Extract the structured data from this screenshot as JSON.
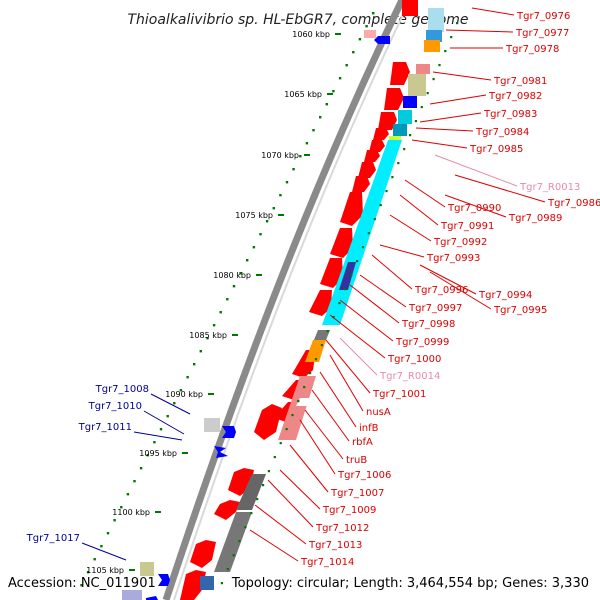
{
  "title": "Thioalkalivibrio sp. HL-EbGR7, complete genome",
  "footer": {
    "accession": "Accession: NC_011901",
    "topology": "Topology: circular; Length: 3,464,554 bp; Genes: 3,330"
  },
  "colors": {
    "forward_label": "#dd0000",
    "reverse_label": "#000099",
    "rna_label": "#e88aa8",
    "forward_gene": "#ff0000",
    "reverse_gene": "#0000ff",
    "cog_cyan": "#00e8f0",
    "cog_grey": "#777777",
    "cog_orange": "#ff9900",
    "cog_olive": "#c8c890",
    "cog_salmon": "#ee8888",
    "tick_green": "#007700"
  },
  "ruler": [
    {
      "label": "1060 kbp"
    },
    {
      "label": "1065 kbp"
    },
    {
      "label": "1070 kbp"
    },
    {
      "label": "1075 kbp"
    },
    {
      "label": "1080 kbp"
    },
    {
      "label": "1085 kbp"
    },
    {
      "label": "1090 kbp"
    },
    {
      "label": "1095 kbp"
    },
    {
      "label": "1100 kbp"
    },
    {
      "label": "1105 kbp"
    }
  ],
  "right_labels": [
    {
      "name": "Tgr7_0976",
      "kind": "gene"
    },
    {
      "name": "Tgr7_0977",
      "kind": "gene"
    },
    {
      "name": "Tgr7_0978",
      "kind": "gene"
    },
    {
      "name": "Tgr7_0981",
      "kind": "gene"
    },
    {
      "name": "Tgr7_0982",
      "kind": "gene"
    },
    {
      "name": "Tgr7_0983",
      "kind": "gene"
    },
    {
      "name": "Tgr7_0984",
      "kind": "gene"
    },
    {
      "name": "Tgr7_0985",
      "kind": "gene"
    },
    {
      "name": "Tgr7_R0013",
      "kind": "rna"
    },
    {
      "name": "Tgr7_0986",
      "kind": "gene"
    },
    {
      "name": "Tgr7_0990",
      "kind": "gene"
    },
    {
      "name": "Tgr7_0989",
      "kind": "gene"
    },
    {
      "name": "Tgr7_0991",
      "kind": "gene"
    },
    {
      "name": "Tgr7_0992",
      "kind": "gene"
    },
    {
      "name": "Tgr7_0993",
      "kind": "gene"
    },
    {
      "name": "Tgr7_0996",
      "kind": "gene"
    },
    {
      "name": "Tgr7_0994",
      "kind": "gene"
    },
    {
      "name": "Tgr7_0997",
      "kind": "gene"
    },
    {
      "name": "Tgr7_0995",
      "kind": "gene"
    },
    {
      "name": "Tgr7_0998",
      "kind": "gene"
    },
    {
      "name": "Tgr7_0999",
      "kind": "gene"
    },
    {
      "name": "Tgr7_1000",
      "kind": "gene"
    },
    {
      "name": "Tgr7_R0014",
      "kind": "rna"
    },
    {
      "name": "Tgr7_1001",
      "kind": "gene"
    },
    {
      "name": "nusA",
      "kind": "gene"
    },
    {
      "name": "infB",
      "kind": "gene"
    },
    {
      "name": "rbfA",
      "kind": "gene"
    },
    {
      "name": "truB",
      "kind": "gene"
    },
    {
      "name": "Tgr7_1006",
      "kind": "gene"
    },
    {
      "name": "Tgr7_1007",
      "kind": "gene"
    },
    {
      "name": "Tgr7_1009",
      "kind": "gene"
    },
    {
      "name": "Tgr7_1012",
      "kind": "gene"
    },
    {
      "name": "Tgr7_1013",
      "kind": "gene"
    },
    {
      "name": "Tgr7_1014",
      "kind": "gene"
    }
  ],
  "left_labels": [
    {
      "name": "Tgr7_1008"
    },
    {
      "name": "Tgr7_1010"
    },
    {
      "name": "Tgr7_1011"
    },
    {
      "name": "Tgr7_1017"
    }
  ]
}
